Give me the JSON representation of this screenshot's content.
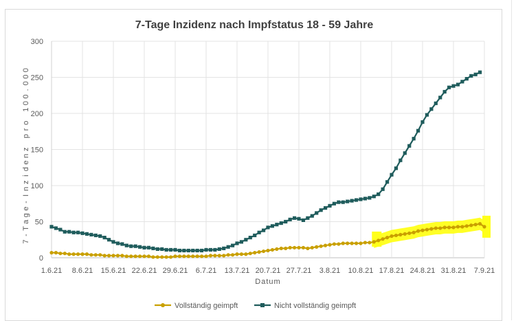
{
  "chart_data": {
    "type": "line",
    "title": "7-Tage Inzidenz nach Impfstatus 18 - 59 Jahre",
    "xlabel": "Datum",
    "ylabel": "7-Tage-Inzidenz pro 100.000",
    "ylim": [
      0,
      300
    ],
    "yticks": [
      0,
      50,
      100,
      150,
      200,
      250,
      300
    ],
    "xticks": [
      "1.6.21",
      "8.6.21",
      "15.6.21",
      "22.6.21",
      "29.6.21",
      "6.7.21",
      "13.7.21",
      "20.7.21",
      "27.7.21",
      "3.8.21",
      "10.8.21",
      "17.8.21",
      "24.8.21",
      "31.8.21",
      "7.9.21"
    ],
    "grid": "vertical-and-horizontal",
    "legend_position": "bottom",
    "x_start": "1.6.21",
    "x_step_days": 1,
    "series": [
      {
        "name": "Vollständig geimpft",
        "color": "#c9a000",
        "marker": "circle",
        "values": [
          7,
          7,
          6,
          6,
          5,
          5,
          5,
          5,
          5,
          4,
          4,
          4,
          3,
          3,
          3,
          3,
          3,
          2,
          2,
          2,
          2,
          2,
          2,
          1,
          1,
          1,
          1,
          1,
          2,
          2,
          2,
          2,
          2,
          2,
          2,
          2,
          3,
          3,
          3,
          3,
          4,
          4,
          5,
          5,
          5,
          6,
          7,
          8,
          9,
          10,
          11,
          12,
          13,
          13,
          14,
          14,
          14,
          14,
          13,
          14,
          15,
          16,
          17,
          18,
          19,
          19,
          20,
          20,
          20,
          20,
          20,
          21,
          21,
          22,
          24,
          26,
          28,
          30,
          31,
          32,
          33,
          34,
          35,
          37,
          38,
          39,
          40,
          41,
          41,
          42,
          42,
          42,
          43,
          43,
          44,
          45,
          46,
          47,
          43
        ]
      },
      {
        "name": "Nicht vollständig geimpft",
        "color": "#1f5c5c",
        "marker": "square",
        "values": [
          43,
          41,
          39,
          36,
          36,
          35,
          35,
          34,
          33,
          32,
          31,
          30,
          28,
          25,
          22,
          20,
          19,
          17,
          16,
          16,
          15,
          14,
          14,
          13,
          12,
          12,
          11,
          11,
          11,
          10,
          10,
          10,
          10,
          10,
          10,
          11,
          11,
          11,
          12,
          13,
          15,
          17,
          20,
          22,
          25,
          28,
          31,
          35,
          38,
          42,
          44,
          46,
          48,
          50,
          53,
          55,
          54,
          52,
          55,
          58,
          62,
          66,
          69,
          72,
          75,
          77,
          77,
          78,
          79,
          80,
          81,
          82,
          83,
          85,
          88,
          95,
          105,
          115,
          124,
          135,
          145,
          155,
          165,
          176,
          188,
          198,
          206,
          214,
          222,
          230,
          236,
          238,
          240,
          244,
          248,
          252,
          254,
          257
        ]
      }
    ],
    "annotation": "gelbe Markierung"
  }
}
